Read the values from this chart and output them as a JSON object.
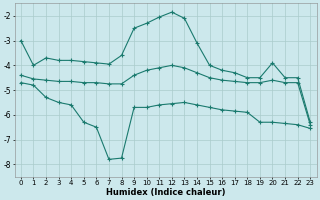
{
  "xlabel": "Humidex (Indice chaleur)",
  "bg_color": "#cce8ec",
  "grid_color": "#aacccc",
  "line_color": "#1a7a6e",
  "marker": "+",
  "linewidth": 0.8,
  "markersize": 3.5,
  "markeredgewidth": 0.8,
  "xlim": [
    -0.5,
    23.5
  ],
  "ylim": [
    -8.5,
    -1.5
  ],
  "yticks": [
    -8,
    -7,
    -6,
    -5,
    -4,
    -3,
    -2
  ],
  "xticks": [
    0,
    1,
    2,
    3,
    4,
    5,
    6,
    7,
    8,
    9,
    10,
    11,
    12,
    13,
    14,
    15,
    16,
    17,
    18,
    19,
    20,
    21,
    22,
    23
  ],
  "series": [
    {
      "x": [
        0,
        1,
        2,
        3,
        4,
        5,
        6,
        7,
        8,
        9,
        10,
        11,
        12,
        13,
        14,
        15,
        16,
        17,
        18,
        19,
        20,
        21,
        22,
        23
      ],
      "y": [
        -3.0,
        -4.0,
        -3.7,
        -3.8,
        -3.8,
        -3.85,
        -3.9,
        -3.95,
        -3.6,
        -2.5,
        -2.3,
        -2.05,
        -1.85,
        -2.1,
        -3.1,
        -4.0,
        -4.2,
        -4.3,
        -4.5,
        -4.5,
        -3.9,
        -4.5,
        -4.5,
        -6.3
      ]
    },
    {
      "x": [
        0,
        1,
        2,
        3,
        4,
        5,
        6,
        7,
        8,
        9,
        10,
        11,
        12,
        13,
        14,
        15,
        16,
        17,
        18,
        19,
        20,
        21,
        22,
        23
      ],
      "y": [
        -4.4,
        -4.55,
        -4.6,
        -4.65,
        -4.65,
        -4.7,
        -4.7,
        -4.75,
        -4.75,
        -4.4,
        -4.2,
        -4.1,
        -4.0,
        -4.1,
        -4.3,
        -4.5,
        -4.6,
        -4.65,
        -4.7,
        -4.7,
        -4.6,
        -4.7,
        -4.7,
        -6.4
      ]
    },
    {
      "x": [
        0,
        1,
        2,
        3,
        4,
        5,
        6,
        7,
        8,
        9,
        10,
        11,
        12,
        13,
        14,
        15,
        16,
        17,
        18,
        19,
        20,
        21,
        22,
        23
      ],
      "y": [
        -4.7,
        -4.8,
        -5.3,
        -5.5,
        -5.6,
        -6.3,
        -6.5,
        -7.8,
        -7.75,
        -5.7,
        -5.7,
        -5.6,
        -5.55,
        -5.5,
        -5.6,
        -5.7,
        -5.8,
        -5.85,
        -5.9,
        -6.3,
        -6.3,
        -6.35,
        -6.4,
        -6.55
      ]
    }
  ]
}
